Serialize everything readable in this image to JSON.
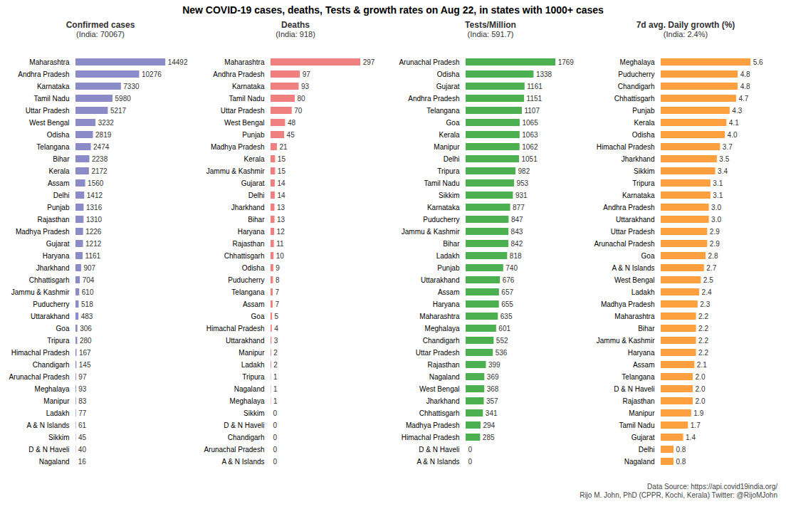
{
  "title": "New COVID-19 cases, deaths, Tests & growth rates on Aug 22, in states with 1000+ cases",
  "caption": "Data Source: https://api.covid19india.org/\nRijo M. John, PhD (CPPR, Kochi, Kerala) Twitter: @RijoMJohn",
  "chart_data": [
    {
      "type": "bar",
      "orientation": "horizontal",
      "title": "Confirmed cases",
      "subtitle": "(India: 70067)",
      "color": "#8b8bc8",
      "data_labels": true,
      "tick_labels": "y",
      "grid": false,
      "categories": [
        "Maharashtra",
        "Andhra Pradesh",
        "Karnataka",
        "Tamil Nadu",
        "Uttar Pradesh",
        "West Bengal",
        "Odisha",
        "Telangana",
        "Bihar",
        "Kerala",
        "Assam",
        "Delhi",
        "Punjab",
        "Rajasthan",
        "Madhya Pradesh",
        "Gujarat",
        "Haryana",
        "Jharkhand",
        "Chhattisgarh",
        "Jammu & Kashmir",
        "Puducherry",
        "Uttarakhand",
        "Goa",
        "Tripura",
        "Himachal Pradesh",
        "Chandigarh",
        "Arunachal Pradesh",
        "Meghalaya",
        "Manipur",
        "Ladakh",
        "A & N Islands",
        "Sikkim",
        "D & N Haveli",
        "Nagaland"
      ],
      "values": [
        14492,
        10276,
        7330,
        5980,
        5217,
        3232,
        2819,
        2474,
        2238,
        2172,
        1560,
        1412,
        1316,
        1310,
        1226,
        1212,
        1161,
        907,
        704,
        610,
        518,
        483,
        306,
        280,
        167,
        145,
        97,
        93,
        83,
        77,
        61,
        45,
        40,
        16
      ],
      "xlim": [
        0,
        18839.6
      ]
    },
    {
      "type": "bar",
      "orientation": "horizontal",
      "title": "Deaths",
      "subtitle": "(India:  918)",
      "color": "#f08080",
      "data_labels": true,
      "tick_labels": "y",
      "grid": false,
      "categories": [
        "Maharashtra",
        "Andhra Pradesh",
        "Karnataka",
        "Tamil Nadu",
        "Uttar Pradesh",
        "West Bengal",
        "Punjab",
        "Madhya Pradesh",
        "Kerala",
        "Jammu & Kashmir",
        "Gujarat",
        "Delhi",
        "Jharkhand",
        "Bihar",
        "Haryana",
        "Rajasthan",
        "Chhattisgarh",
        "Odisha",
        "Puducherry",
        "Telangana",
        "Assam",
        "Goa",
        "Himachal Pradesh",
        "Uttarakhand",
        "Manipur",
        "Ladakh",
        "Tripura",
        "Nagaland",
        "Meghalaya",
        "Sikkim",
        "D & N Haveli",
        "Chandigarh",
        "Arunachal Pradesh",
        "A & N Islands"
      ],
      "values": [
        297,
        97,
        93,
        80,
        70,
        48,
        45,
        21,
        15,
        15,
        14,
        14,
        13,
        13,
        12,
        11,
        10,
        9,
        8,
        7,
        7,
        5,
        4,
        3,
        2,
        2,
        1,
        1,
        1,
        0,
        0,
        0,
        0,
        0
      ],
      "xlim": [
        0,
        386.1
      ]
    },
    {
      "type": "bar",
      "orientation": "horizontal",
      "title": "Tests/Million",
      "subtitle": "(India: 591.7)",
      "color": "#4caf50",
      "data_labels": true,
      "tick_labels": "y",
      "grid": false,
      "categories": [
        "Arunachal Pradesh",
        "Odisha",
        "Gujarat",
        "Andhra Pradesh",
        "Telangana",
        "Goa",
        "Kerala",
        "Manipur",
        "Delhi",
        "Tripura",
        "Tamil Nadu",
        "Sikkim",
        "Karnataka",
        "Puducherry",
        "Jammu & Kashmir",
        "Bihar",
        "Ladakh",
        "Punjab",
        "Uttarakhand",
        "Assam",
        "Haryana",
        "Maharashtra",
        "Meghalaya",
        "Chandigarh",
        "Uttar Pradesh",
        "Rajasthan",
        "Nagaland",
        "West Bengal",
        "Jharkhand",
        "Chhattisgarh",
        "Madhya Pradesh",
        "Himachal Pradesh",
        "D & N Haveli",
        "A & N Islands"
      ],
      "values": [
        1769,
        1338,
        1161,
        1151,
        1107,
        1065,
        1063,
        1062,
        1051,
        982,
        953,
        931,
        877,
        847,
        843,
        842,
        818,
        740,
        676,
        657,
        655,
        635,
        601,
        552,
        536,
        399,
        369,
        368,
        357,
        341,
        294,
        285,
        0,
        0
      ],
      "xlim": [
        0,
        2299.7
      ]
    },
    {
      "type": "bar",
      "orientation": "horizontal",
      "title": "7d avg. Daily growth (%)",
      "subtitle": "(India:  2.4%)",
      "color": "#ffa040",
      "data_labels": true,
      "tick_labels": "y",
      "grid": false,
      "categories": [
        "Meghalaya",
        "Puducherry",
        "Chandigarh",
        "Chhattisgarh",
        "Punjab",
        "Kerala",
        "Odisha",
        "Himachal Pradesh",
        "Jharkhand",
        "Sikkim",
        "Tripura",
        "Karnataka",
        "Andhra Pradesh",
        "Uttarakhand",
        "Uttar Pradesh",
        "Arunachal Pradesh",
        "Goa",
        "A & N Islands",
        "West Bengal",
        "Ladakh",
        "Madhya Pradesh",
        "Maharashtra",
        "Bihar",
        "Jammu & Kashmir",
        "Haryana",
        "Assam",
        "Telangana",
        "D & N Haveli",
        "Rajasthan",
        "Manipur",
        "Tamil Nadu",
        "Gujarat",
        "Delhi",
        "Nagaland"
      ],
      "values": [
        5.6,
        4.8,
        4.8,
        4.7,
        4.3,
        4.1,
        4.0,
        3.7,
        3.5,
        3.4,
        3.1,
        3.1,
        3.0,
        3.0,
        2.9,
        2.9,
        2.8,
        2.7,
        2.5,
        2.4,
        2.3,
        2.2,
        2.2,
        2.2,
        2.2,
        2.1,
        2.0,
        2.0,
        2.0,
        1.9,
        1.7,
        1.4,
        0.8,
        0.8
      ],
      "value_labels": [
        "5.6",
        "4.8",
        "4.8",
        "4.7",
        "4.3",
        "4.1",
        "4.0",
        "3.7",
        "3.5",
        "3.4",
        "3.1",
        "3.1",
        "3.0",
        "3.0",
        "2.9",
        "2.9",
        "2.8",
        "2.7",
        "2.5",
        "2.4",
        "2.3",
        "2.2",
        "2.2",
        "2.2",
        "2.2",
        "2.1",
        "2.0",
        "2.0",
        "2.0",
        "1.9",
        "1.7",
        "1.4",
        "0.8",
        "0.8"
      ],
      "xlim": [
        0,
        7.28
      ]
    }
  ]
}
